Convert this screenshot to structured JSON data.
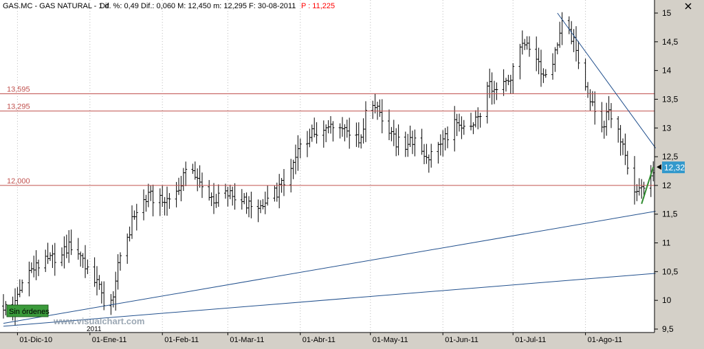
{
  "header": {
    "symbol": "GAS.MC - GAS NATURAL - 1 d",
    "info": "Dif. %: 0,49  Dif.: 0,060  M: 12,450  m: 12,295  F: 30-08-2011",
    "price_label": "P : 11,225",
    "close_icon": "close-icon"
  },
  "badges": {
    "orders": "Sin órdenes",
    "watermark": "www.visualchart.com",
    "last_price": "12,32",
    "year_marker": "2011"
  },
  "colors": {
    "background": "#ffffff",
    "frame": "#d4d0c8",
    "grid": "#b8b8b8",
    "bars": "#000000",
    "support_lines": "#c0504d",
    "trend_lines": "#1f4e8c",
    "last_price_badge": "#3399cc",
    "short_trend": "#2e8b2e",
    "orders_badge": "#3a9a3a",
    "price_label": "#ff0000"
  },
  "chart_data": {
    "type": "bar",
    "subtype": "ohlc",
    "x_axis_labels": [
      "01-Dic-10",
      "01-Ene-11",
      "01-Feb-11",
      "01-Mar-11",
      "01-Abr-11",
      "01-May-11",
      "01-Jun-11",
      "01-Jul-11",
      "01-Ago-11"
    ],
    "y_axis_labels": [
      "9,5",
      "10",
      "10,5",
      "11",
      "11,5",
      "12",
      "12,5",
      "13",
      "13,5",
      "14",
      "14,5",
      "15"
    ],
    "ylim": [
      9.5,
      15.1
    ],
    "grid": "vertical dotted at each month",
    "axis_position": "right",
    "horizontal_levels": [
      {
        "label": "13,595",
        "value": 13.595
      },
      {
        "label": "13,295",
        "value": 13.295
      },
      {
        "label": "12,000",
        "value": 12.0
      }
    ],
    "trend_lines": [
      {
        "from": [
          "2010-11-25",
          9.6
        ],
        "to": [
          "2011-08-31",
          11.55
        ]
      },
      {
        "from": [
          "2010-11-25",
          9.55
        ],
        "to": [
          "2011-08-31",
          10.47
        ]
      },
      {
        "from": [
          "2011-07-20",
          15.0
        ],
        "to": [
          "2011-08-31",
          12.65
        ]
      },
      {
        "from": [
          "2011-08-25",
          11.68
        ],
        "to": [
          "2011-08-30",
          12.32
        ]
      }
    ],
    "series": [
      {
        "period": "daily",
        "start_date": "2010-11-25",
        "anchors": [
          [
            "2010-11-25",
            9.9
          ],
          [
            "2010-11-29",
            9.8
          ],
          [
            "2010-12-01",
            10.05
          ],
          [
            "2010-12-03",
            10.3
          ],
          [
            "2010-12-06",
            10.5
          ],
          [
            "2010-12-10",
            10.6
          ],
          [
            "2010-12-15",
            10.7
          ],
          [
            "2010-12-20",
            10.85
          ],
          [
            "2010-12-24",
            10.95
          ],
          [
            "2010-12-28",
            10.8
          ],
          [
            "2010-12-31",
            10.55
          ],
          [
            "2011-01-04",
            10.3
          ],
          [
            "2011-01-07",
            10.0
          ],
          [
            "2011-01-10",
            9.95
          ],
          [
            "2011-01-13",
            10.55
          ],
          [
            "2011-01-17",
            11.1
          ],
          [
            "2011-01-20",
            11.5
          ],
          [
            "2011-01-24",
            11.75
          ],
          [
            "2011-01-27",
            11.8
          ],
          [
            "2011-02-01",
            11.7
          ],
          [
            "2011-02-07",
            11.85
          ],
          [
            "2011-02-10",
            12.15
          ],
          [
            "2011-02-14",
            12.25
          ],
          [
            "2011-02-17",
            12.0
          ],
          [
            "2011-02-21",
            11.8
          ],
          [
            "2011-02-24",
            11.75
          ],
          [
            "2011-03-01",
            11.85
          ],
          [
            "2011-03-07",
            11.75
          ],
          [
            "2011-03-11",
            11.6
          ],
          [
            "2011-03-15",
            11.55
          ],
          [
            "2011-03-18",
            11.75
          ],
          [
            "2011-03-22",
            11.9
          ],
          [
            "2011-03-25",
            12.05
          ],
          [
            "2011-03-29",
            12.35
          ],
          [
            "2011-04-01",
            12.7
          ],
          [
            "2011-04-06",
            12.9
          ],
          [
            "2011-04-11",
            12.95
          ],
          [
            "2011-04-14",
            13.1
          ],
          [
            "2011-04-18",
            13.1
          ],
          [
            "2011-04-21",
            12.95
          ],
          [
            "2011-04-26",
            12.75
          ],
          [
            "2011-04-29",
            13.2
          ],
          [
            "2011-05-03",
            13.45
          ],
          [
            "2011-05-05",
            13.3
          ],
          [
            "2011-05-09",
            12.9
          ],
          [
            "2011-05-12",
            12.75
          ],
          [
            "2011-05-16",
            12.7
          ],
          [
            "2011-05-19",
            12.8
          ],
          [
            "2011-05-23",
            12.6
          ],
          [
            "2011-05-26",
            12.5
          ],
          [
            "2011-05-30",
            12.65
          ],
          [
            "2011-06-02",
            12.85
          ],
          [
            "2011-06-06",
            13.05
          ],
          [
            "2011-06-09",
            12.95
          ],
          [
            "2011-06-13",
            13.0
          ],
          [
            "2011-06-16",
            13.15
          ],
          [
            "2011-06-20",
            13.7
          ],
          [
            "2011-06-23",
            13.75
          ],
          [
            "2011-06-27",
            13.8
          ],
          [
            "2011-06-30",
            13.85
          ],
          [
            "2011-07-04",
            14.35
          ],
          [
            "2011-07-07",
            14.4
          ],
          [
            "2011-07-11",
            14.2
          ],
          [
            "2011-07-14",
            13.9
          ],
          [
            "2011-07-18",
            14.1
          ],
          [
            "2011-07-21",
            14.7
          ],
          [
            "2011-07-22",
            14.85
          ],
          [
            "2011-07-26",
            14.6
          ],
          [
            "2011-07-29",
            14.2
          ],
          [
            "2011-08-02",
            13.65
          ],
          [
            "2011-08-05",
            13.35
          ],
          [
            "2011-08-09",
            13.05
          ],
          [
            "2011-08-11",
            13.3
          ],
          [
            "2011-08-15",
            13.0
          ],
          [
            "2011-08-18",
            12.5
          ],
          [
            "2011-08-22",
            11.9
          ],
          [
            "2011-08-24",
            12.05
          ],
          [
            "2011-08-26",
            12.0
          ],
          [
            "2011-08-30",
            12.32
          ]
        ]
      }
    ]
  }
}
